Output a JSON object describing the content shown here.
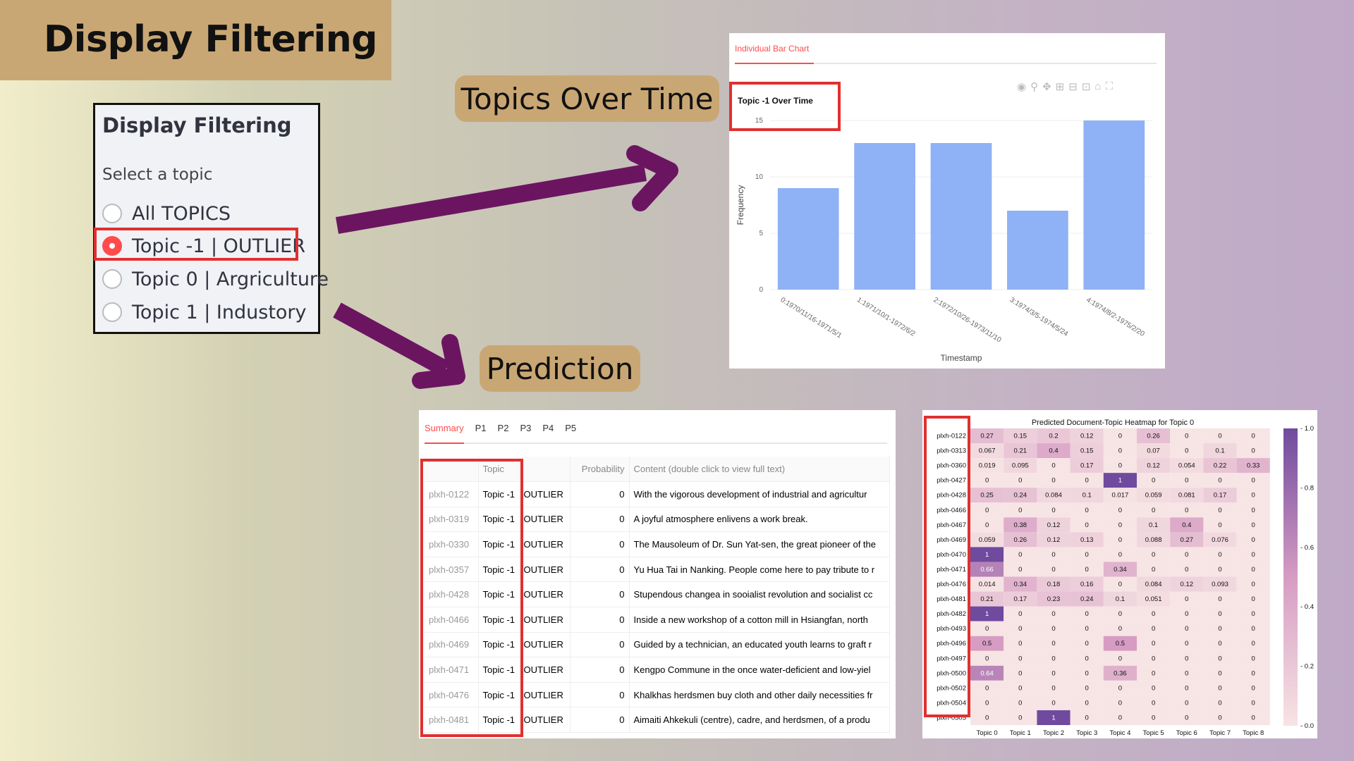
{
  "page_title": "Display Filtering",
  "sidebar": {
    "header": "Display Filtering",
    "subheader": "Select a topic",
    "options": [
      {
        "label": "All TOPICS",
        "selected": false
      },
      {
        "label": "Topic -1 | OUTLIER",
        "selected": true
      },
      {
        "label": "Topic 0 | Argriculture",
        "selected": false
      },
      {
        "label": "Topic 1 | Industory",
        "selected": false
      }
    ]
  },
  "labels": {
    "topics_over_time": "Topics Over Time",
    "prediction": "Prediction"
  },
  "bar_panel": {
    "tab": "Individual Bar Chart",
    "chart_data": {
      "type": "bar",
      "title": "Topic -1 Over Time",
      "xlabel": "Timestamp",
      "ylabel": "Frequency",
      "ylim": [
        0,
        15
      ],
      "yticks": [
        0,
        5,
        10,
        15
      ],
      "categories": [
        "0:1970/11/16-1971/5/1",
        "1:1971/10/1-1972/6/2",
        "2:1972/10/26-1973/11/10",
        "3:1974/3/5-1974/5/24",
        "4:1974/8/2-1975/2/20"
      ],
      "values": [
        9,
        13,
        13,
        7,
        15
      ],
      "bar_color": "#8fb1f5",
      "grid": true
    }
  },
  "prediction_panel": {
    "tabs": [
      "Summary",
      "P1",
      "P2",
      "P3",
      "P4",
      "P5"
    ],
    "columns": [
      "",
      "Topic",
      "",
      "Probability",
      "Content (double click to view full text)"
    ],
    "rows": [
      {
        "id": "plxh-0122",
        "topic": "Topic -1",
        "name": "OUTLIER",
        "prob": "0",
        "content": "With the vigorous development of industrial and agricultur"
      },
      {
        "id": "plxh-0319",
        "topic": "Topic -1",
        "name": "OUTLIER",
        "prob": "0",
        "content": "A joyful atmosphere enlivens a work break."
      },
      {
        "id": "plxh-0330",
        "topic": "Topic -1",
        "name": "OUTLIER",
        "prob": "0",
        "content": "The Mausoleum of Dr. Sun Yat-sen, the great pioneer of the"
      },
      {
        "id": "plxh-0357",
        "topic": "Topic -1",
        "name": "OUTLIER",
        "prob": "0",
        "content": "Yu Hua Tai in Nanking. People come here to pay tribute to r"
      },
      {
        "id": "plxh-0428",
        "topic": "Topic -1",
        "name": "OUTLIER",
        "prob": "0",
        "content": "Stupendous changea in sooialist revolution and socialist cc"
      },
      {
        "id": "plxh-0466",
        "topic": "Topic -1",
        "name": "OUTLIER",
        "prob": "0",
        "content": "Inside a new workshop of a cotton mill in Hsiangfan, north"
      },
      {
        "id": "plxh-0469",
        "topic": "Topic -1",
        "name": "OUTLIER",
        "prob": "0",
        "content": "Guided by a technician, an educated youth learns to graft r"
      },
      {
        "id": "plxh-0471",
        "topic": "Topic -1",
        "name": "OUTLIER",
        "prob": "0",
        "content": "Kengpo Commune in the once water-deficient and low-yiel"
      },
      {
        "id": "plxh-0476",
        "topic": "Topic -1",
        "name": "OUTLIER",
        "prob": "0",
        "content": "Khalkhas herdsmen buy cloth and other daily necessities fr"
      },
      {
        "id": "plxh-0481",
        "topic": "Topic -1",
        "name": "OUTLIER",
        "prob": "0",
        "content": "Aimaiti Ahkekuli (centre), cadre, and herdsmen, of a produ"
      }
    ]
  },
  "heatmap_panel": {
    "chart_data": {
      "type": "heatmap",
      "title": "Predicted Document-Topic Heatmap for Topic 0",
      "x": [
        "Topic 0",
        "Topic 1",
        "Topic 2",
        "Topic 3",
        "Topic 4",
        "Topic 5",
        "Topic 6",
        "Topic 7",
        "Topic 8"
      ],
      "y": [
        "plxh-0122",
        "plxh-0313",
        "plxh-0360",
        "plxh-0427",
        "plxh-0428",
        "plxh-0466",
        "plxh-0467",
        "plxh-0469",
        "plxh-0470",
        "plxh-0471",
        "plxh-0476",
        "plxh-0481",
        "plxh-0482",
        "plxh-0493",
        "plxh-0496",
        "plxh-0497",
        "plxh-0500",
        "plxh-0502",
        "plxh-0504",
        "plxh-0505"
      ],
      "values": [
        [
          "0.27",
          "0.15",
          "0.2",
          "0.12",
          "0",
          "0.26",
          "0",
          "0",
          "0"
        ],
        [
          "0.067",
          "0.21",
          "0.4",
          "0.15",
          "0",
          "0.07",
          "0",
          "0.1",
          "0"
        ],
        [
          "0.019",
          "0.095",
          "0",
          "0.17",
          "0",
          "0.12",
          "0.054",
          "0.22",
          "0.33"
        ],
        [
          "0",
          "0",
          "0",
          "0",
          "1",
          "0",
          "0",
          "0",
          "0"
        ],
        [
          "0.25",
          "0.24",
          "0.084",
          "0.1",
          "0.017",
          "0.059",
          "0.081",
          "0.17",
          "0"
        ],
        [
          "0",
          "0",
          "0",
          "0",
          "0",
          "0",
          "0",
          "0",
          "0"
        ],
        [
          "0",
          "0.38",
          "0.12",
          "0",
          "0",
          "0.1",
          "0.4",
          "0",
          "0"
        ],
        [
          "0.059",
          "0.26",
          "0.12",
          "0.13",
          "0",
          "0.088",
          "0.27",
          "0.076",
          "0"
        ],
        [
          "1",
          "0",
          "0",
          "0",
          "0",
          "0",
          "0",
          "0",
          "0"
        ],
        [
          "0.66",
          "0",
          "0",
          "0",
          "0.34",
          "0",
          "0",
          "0",
          "0"
        ],
        [
          "0.014",
          "0.34",
          "0.18",
          "0.16",
          "0",
          "0.084",
          "0.12",
          "0.093",
          "0"
        ],
        [
          "0.21",
          "0.17",
          "0.23",
          "0.24",
          "0.1",
          "0.051",
          "0",
          "0",
          "0"
        ],
        [
          "1",
          "0",
          "0",
          "0",
          "0",
          "0",
          "0",
          "0",
          "0"
        ],
        [
          "0",
          "0",
          "0",
          "0",
          "0",
          "0",
          "0",
          "0",
          "0"
        ],
        [
          "0.5",
          "0",
          "0",
          "0",
          "0.5",
          "0",
          "0",
          "0",
          "0"
        ],
        [
          "0",
          "0",
          "0",
          "0",
          "0",
          "0",
          "0",
          "0",
          "0"
        ],
        [
          "0.64",
          "0",
          "0",
          "0",
          "0.36",
          "0",
          "0",
          "0",
          "0"
        ],
        [
          "0",
          "0",
          "0",
          "0",
          "0",
          "0",
          "0",
          "0",
          "0"
        ],
        [
          "0",
          "0",
          "0",
          "0",
          "0",
          "0",
          "0",
          "0",
          "0"
        ],
        [
          "0",
          "0",
          "1",
          "0",
          "0",
          "0",
          "0",
          "0",
          "0"
        ]
      ],
      "colorbar_ticks": [
        "0.0",
        "0.2",
        "0.4",
        "0.6",
        "0.8",
        "1.0"
      ],
      "color_low": "#f7e4e4",
      "color_high": "#6f4a9e"
    }
  },
  "colors": {
    "accent": "#ff4b4b",
    "highlight_box": "#e03030",
    "arrow": "#6b1561",
    "label_bg": "#c9a774"
  }
}
